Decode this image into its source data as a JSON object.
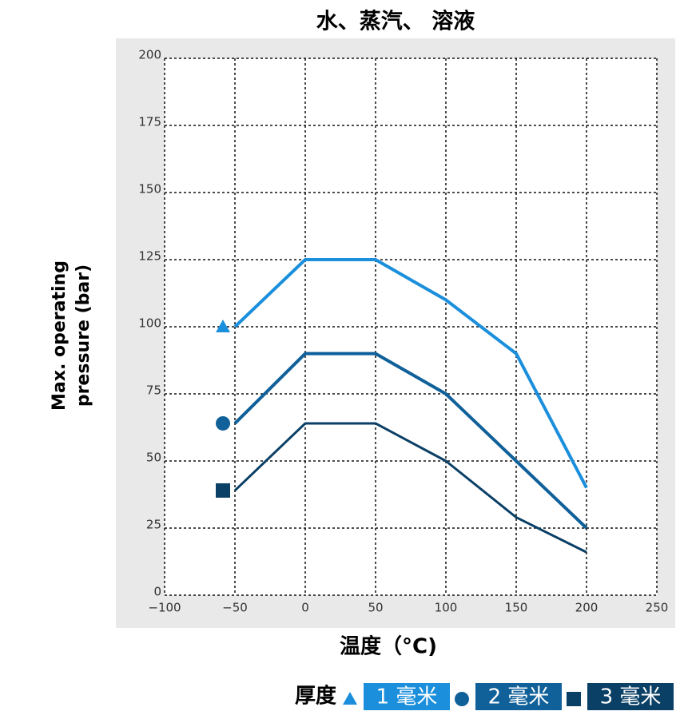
{
  "chart_data": {
    "type": "line",
    "title": "水、蒸汽、 溶液",
    "xlabel": "温度（°C)",
    "ylabel": [
      "Max. operating",
      "pressure (bar)"
    ],
    "legend_title": "厚度",
    "x": [
      -50,
      0,
      50,
      100,
      150,
      200
    ],
    "series": [
      {
        "name": "1 毫米",
        "color": "#1b8fdc",
        "marker": "triangle",
        "values": [
          100,
          125,
          125,
          110,
          90,
          40
        ]
      },
      {
        "name": "2 毫米",
        "color": "#10609a",
        "marker": "circle",
        "values": [
          64,
          90,
          90,
          75,
          50,
          25
        ]
      },
      {
        "name": "3 毫米",
        "color": "#0a3f66",
        "marker": "square",
        "values": [
          39,
          64,
          64,
          50,
          29,
          16
        ]
      }
    ],
    "xlim": [
      -100,
      250
    ],
    "xticks": [
      {
        "value": -100,
        "label": "−100"
      },
      {
        "value": -50,
        "label": "−50"
      },
      0,
      50,
      100,
      150,
      200,
      250
    ],
    "ylim": [
      0,
      200
    ],
    "yticks": [
      0,
      25,
      50,
      75,
      100,
      125,
      150,
      175,
      200
    ],
    "grid": true
  }
}
